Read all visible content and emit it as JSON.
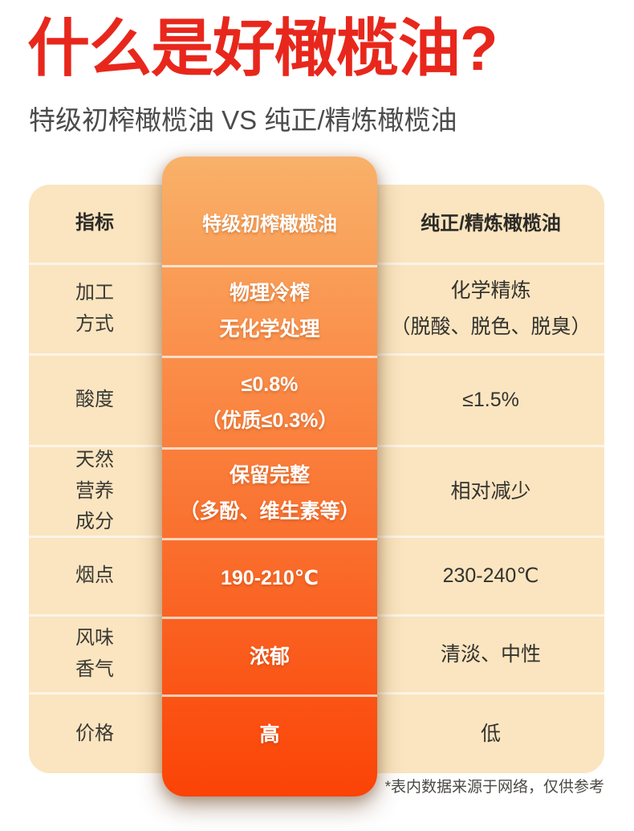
{
  "header": {
    "title": "什么是好橄榄油?",
    "subtitle": "特级初榨橄榄油 VS 纯正/精炼橄榄油"
  },
  "table": {
    "columns": [
      "指标",
      "特级初榨橄榄油",
      "纯正/精炼橄榄油"
    ],
    "rows": [
      {
        "label": "加工\n方式",
        "evoo": "物理冷榨\n无化学处理",
        "refined": "化学精炼\n（脱酸、脱色、脱臭）"
      },
      {
        "label": "酸度",
        "evoo": "≤0.8%\n（优质≤0.3%）",
        "refined": "≤1.5%"
      },
      {
        "label": "天然\n营养\n成分",
        "evoo": "保留完整\n（多酚、维生素等）",
        "refined": "相对减少"
      },
      {
        "label": "烟点",
        "evoo": "190-210℃",
        "refined": "230-240℃"
      },
      {
        "label": "风味\n香气",
        "evoo": "浓郁",
        "refined": "清淡、中性"
      },
      {
        "label": "价格",
        "evoo": "高",
        "refined": "低"
      }
    ]
  },
  "footer": {
    "note": "*表内数据来源于网络，仅供参考"
  },
  "colors": {
    "title_red": "#E8271C",
    "subtitle_gray": "#4B4B4B",
    "table_cream": "#FAE5C0",
    "divider": "#FCF4E6",
    "gradient_top": "#F9B169",
    "gradient_bottom": "#FB4306",
    "text_dark": "#3B3934",
    "evoo_text": "#FFFFFF"
  }
}
